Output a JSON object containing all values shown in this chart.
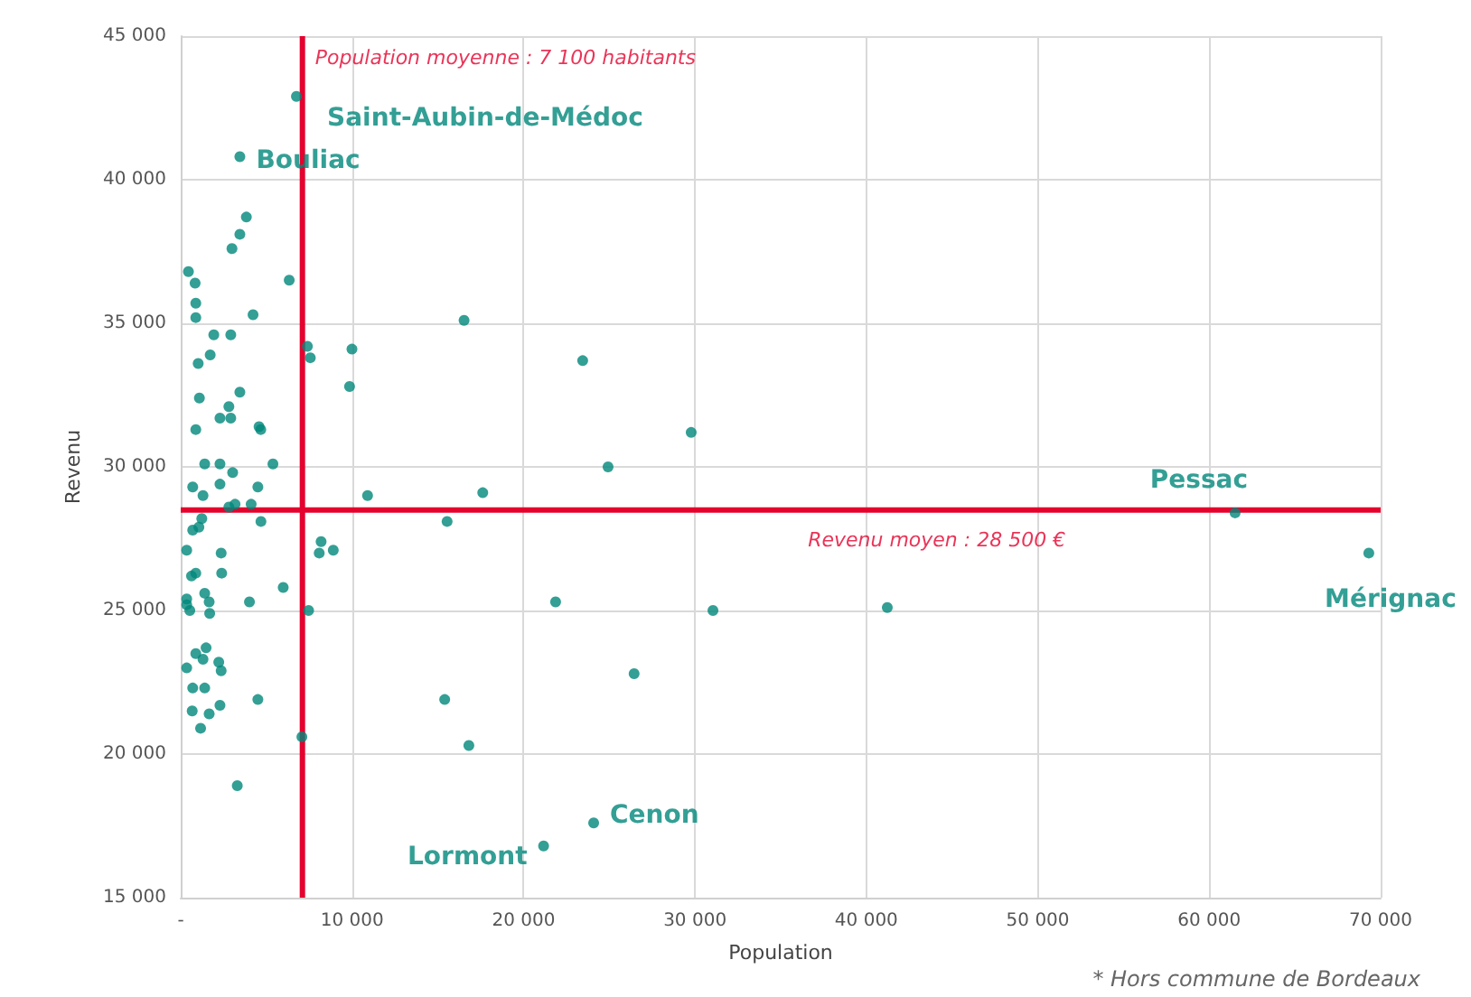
{
  "chart_data": {
    "type": "scatter",
    "xlabel": "Population",
    "ylabel": "Revenu",
    "x": [
      6750,
      3450,
      3830,
      3450,
      2990,
      450,
      840,
      6330,
      880,
      880,
      4220,
      1930,
      2920,
      7390,
      7560,
      9990,
      1720,
      1020,
      9850,
      1090,
      3450,
      2810,
      2290,
      2920,
      880,
      4570,
      4670,
      1400,
      2290,
      3030,
      5380,
      700,
      1300,
      2290,
      4500,
      2810,
      3170,
      4110,
      10900,
      1230,
      700,
      1060,
      4680,
      8190,
      8080,
      8900,
      350,
      2360,
      2390,
      630,
      880,
      5980,
      350,
      1400,
      1660,
      530,
      350,
      1690,
      4010,
      7460,
      1480,
      880,
      1300,
      2220,
      2360,
      350,
      700,
      1400,
      2290,
      4500,
      670,
      1660,
      1160,
      7070,
      3300,
      16530,
      23450,
      29780,
      24930,
      17620,
      15540,
      21870,
      31050,
      41220,
      26450,
      15400,
      16810,
      24090,
      21170,
      61510,
      69310
    ],
    "values": [
      42900,
      40800,
      38700,
      38100,
      37600,
      36800,
      36400,
      36500,
      35700,
      35200,
      35300,
      34600,
      34600,
      34200,
      33800,
      34100,
      33900,
      33600,
      32800,
      32400,
      32600,
      32100,
      31700,
      31700,
      31300,
      31400,
      31300,
      30100,
      30100,
      29800,
      30100,
      29300,
      29000,
      29400,
      29300,
      28600,
      28700,
      28700,
      29000,
      28200,
      27800,
      27900,
      28100,
      27400,
      27000,
      27100,
      27100,
      27000,
      26300,
      26200,
      26300,
      25800,
      25400,
      25600,
      25300,
      25000,
      25200,
      24900,
      25300,
      25000,
      23700,
      23500,
      23300,
      23200,
      22900,
      23000,
      22300,
      22300,
      21700,
      21900,
      21500,
      21400,
      20900,
      20600,
      18900,
      35100,
      33700,
      31200,
      30000,
      29100,
      28100,
      25300,
      25000,
      25100,
      22800,
      21900,
      20300,
      17600,
      16800,
      28400,
      27000
    ],
    "color": "#00877a",
    "marker": "circle",
    "xlim": [
      0,
      70000
    ],
    "ylim": [
      15000,
      45000
    ],
    "xticks": [
      {
        "value": 0,
        "label": "-"
      },
      {
        "value": 10000,
        "label": "10 000"
      },
      {
        "value": 20000,
        "label": "20 000"
      },
      {
        "value": 30000,
        "label": "30 000"
      },
      {
        "value": 40000,
        "label": "40 000"
      },
      {
        "value": 50000,
        "label": "50 000"
      },
      {
        "value": 60000,
        "label": "60 000"
      },
      {
        "value": 70000,
        "label": "70 000"
      }
    ],
    "yticks": [
      {
        "value": 15000,
        "label": "15 000"
      },
      {
        "value": 20000,
        "label": "20 000"
      },
      {
        "value": 25000,
        "label": "25 000"
      },
      {
        "value": 30000,
        "label": "30 000"
      },
      {
        "value": 35000,
        "label": "35 000"
      },
      {
        "value": 40000,
        "label": "40 000"
      },
      {
        "value": 45000,
        "label": "45 000"
      }
    ],
    "grid": true,
    "ref_lines": [
      {
        "axis": "x",
        "value": 7100,
        "label": "Population moyenne : 7 100 habitants",
        "color": "#e4032e"
      },
      {
        "axis": "y",
        "value": 28500,
        "label": "Revenu moyen : 28 500 €",
        "color": "#e4032e"
      }
    ],
    "annotations": [
      {
        "text": "Saint-Aubin-de-Médoc",
        "x": 6750,
        "y": 42900
      },
      {
        "text": "Bouliac",
        "x": 3450,
        "y": 40800
      },
      {
        "text": "Pessac",
        "x": 61510,
        "y": 28400
      },
      {
        "text": "Mérignac",
        "x": 69310,
        "y": 27000
      },
      {
        "text": "Cenon",
        "x": 24090,
        "y": 17600
      },
      {
        "text": "Lormont",
        "x": 21170,
        "y": 16800
      },
      "* Hors commune de Bordeaux"
    ]
  }
}
